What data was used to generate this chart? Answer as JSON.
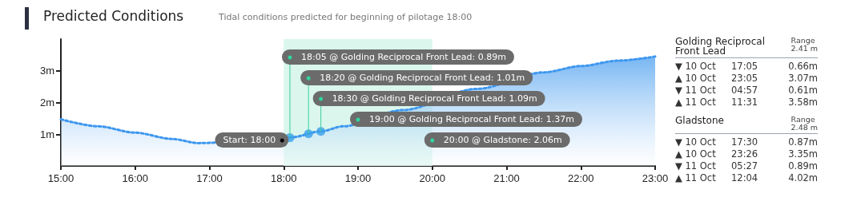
{
  "chart_data": {
    "type": "area",
    "title": "Predicted Conditions",
    "subtitle": "Tidal conditions predicted for beginning of pilotage 18:00",
    "series": [
      {
        "color": "#3d97ee",
        "line_style": "dotted",
        "marker": "none",
        "x": [
          15,
          15.5,
          16,
          16.5,
          16.85,
          18.1,
          18.5,
          18.8,
          19.6,
          20.6,
          21.5,
          22,
          22.5,
          23
        ],
        "values": [
          1.47,
          1.25,
          1.05,
          0.85,
          0.72,
          0.9,
          1.09,
          1.25,
          1.76,
          2.43,
          2.95,
          3.15,
          3.32,
          3.45
        ]
      },
      {
        "type": "scatter",
        "color": "#3aa0e8",
        "marker": "circle",
        "x": [
          18.0833,
          18.3333,
          18.5
        ],
        "values": [
          0.89,
          1.01,
          1.09
        ]
      }
    ],
    "xlim": [
      15,
      23
    ],
    "xticks": [
      {
        "value": 15,
        "label": "15:00"
      },
      {
        "value": 16,
        "label": "16:00"
      },
      {
        "value": 17,
        "label": "17:00"
      },
      {
        "value": 18,
        "label": "18:00"
      },
      {
        "value": 19,
        "label": "19:00"
      },
      {
        "value": 20,
        "label": "20:00"
      },
      {
        "value": 21,
        "label": "21:00"
      },
      {
        "value": 22,
        "label": "22:00"
      },
      {
        "value": 23,
        "label": "23:00"
      }
    ],
    "ylim": [
      0,
      4
    ],
    "yticks": [
      {
        "value": 1,
        "label": "1m"
      },
      {
        "value": 2,
        "label": "2m"
      },
      {
        "value": 3,
        "label": "3m"
      }
    ],
    "bands": [
      {
        "axis": "x",
        "from": 18,
        "to": 20,
        "color": "#d3f5ea"
      }
    ],
    "grid": false,
    "annotations": [
      {
        "text": "18:05 @ Golding Reciprocal Front Lead: 0.89m",
        "x": 18.0833,
        "y": 0.89
      },
      {
        "text": "18:20 @ Golding Reciprocal Front Lead: 1.01m",
        "x": 18.3333,
        "y": 1.01
      },
      {
        "text": "18:30 @ Golding Reciprocal Front Lead: 1.09m",
        "x": 18.5,
        "y": 1.09
      },
      {
        "text": "19:00 @ Golding Reciprocal Front Lead: 1.37m",
        "x": 19,
        "y": 1.37
      },
      {
        "text": "Start: 18:00",
        "x": 18,
        "y": 0.85
      },
      "20:00 @ Gladstone: 2.06m",
      "Golding Reciprocal Front Lead",
      "Range 2.41 m",
      "▼ 10 Oct 17:05 0.66m",
      "▲ 10 Oct 23:05 3.07m",
      "▼ 11 Oct 04:57 0.61m",
      "▲ 11 Oct 11:31 3.58m",
      "Gladstone",
      "Range 2.48 m",
      "▼ 10 Oct 17:30 0.87m",
      "▲ 10 Oct 23:26 3.35m",
      "▼ 11 Oct 05:27 0.89m",
      "▲ 11 Oct 12:04 4.02m"
    ]
  }
}
